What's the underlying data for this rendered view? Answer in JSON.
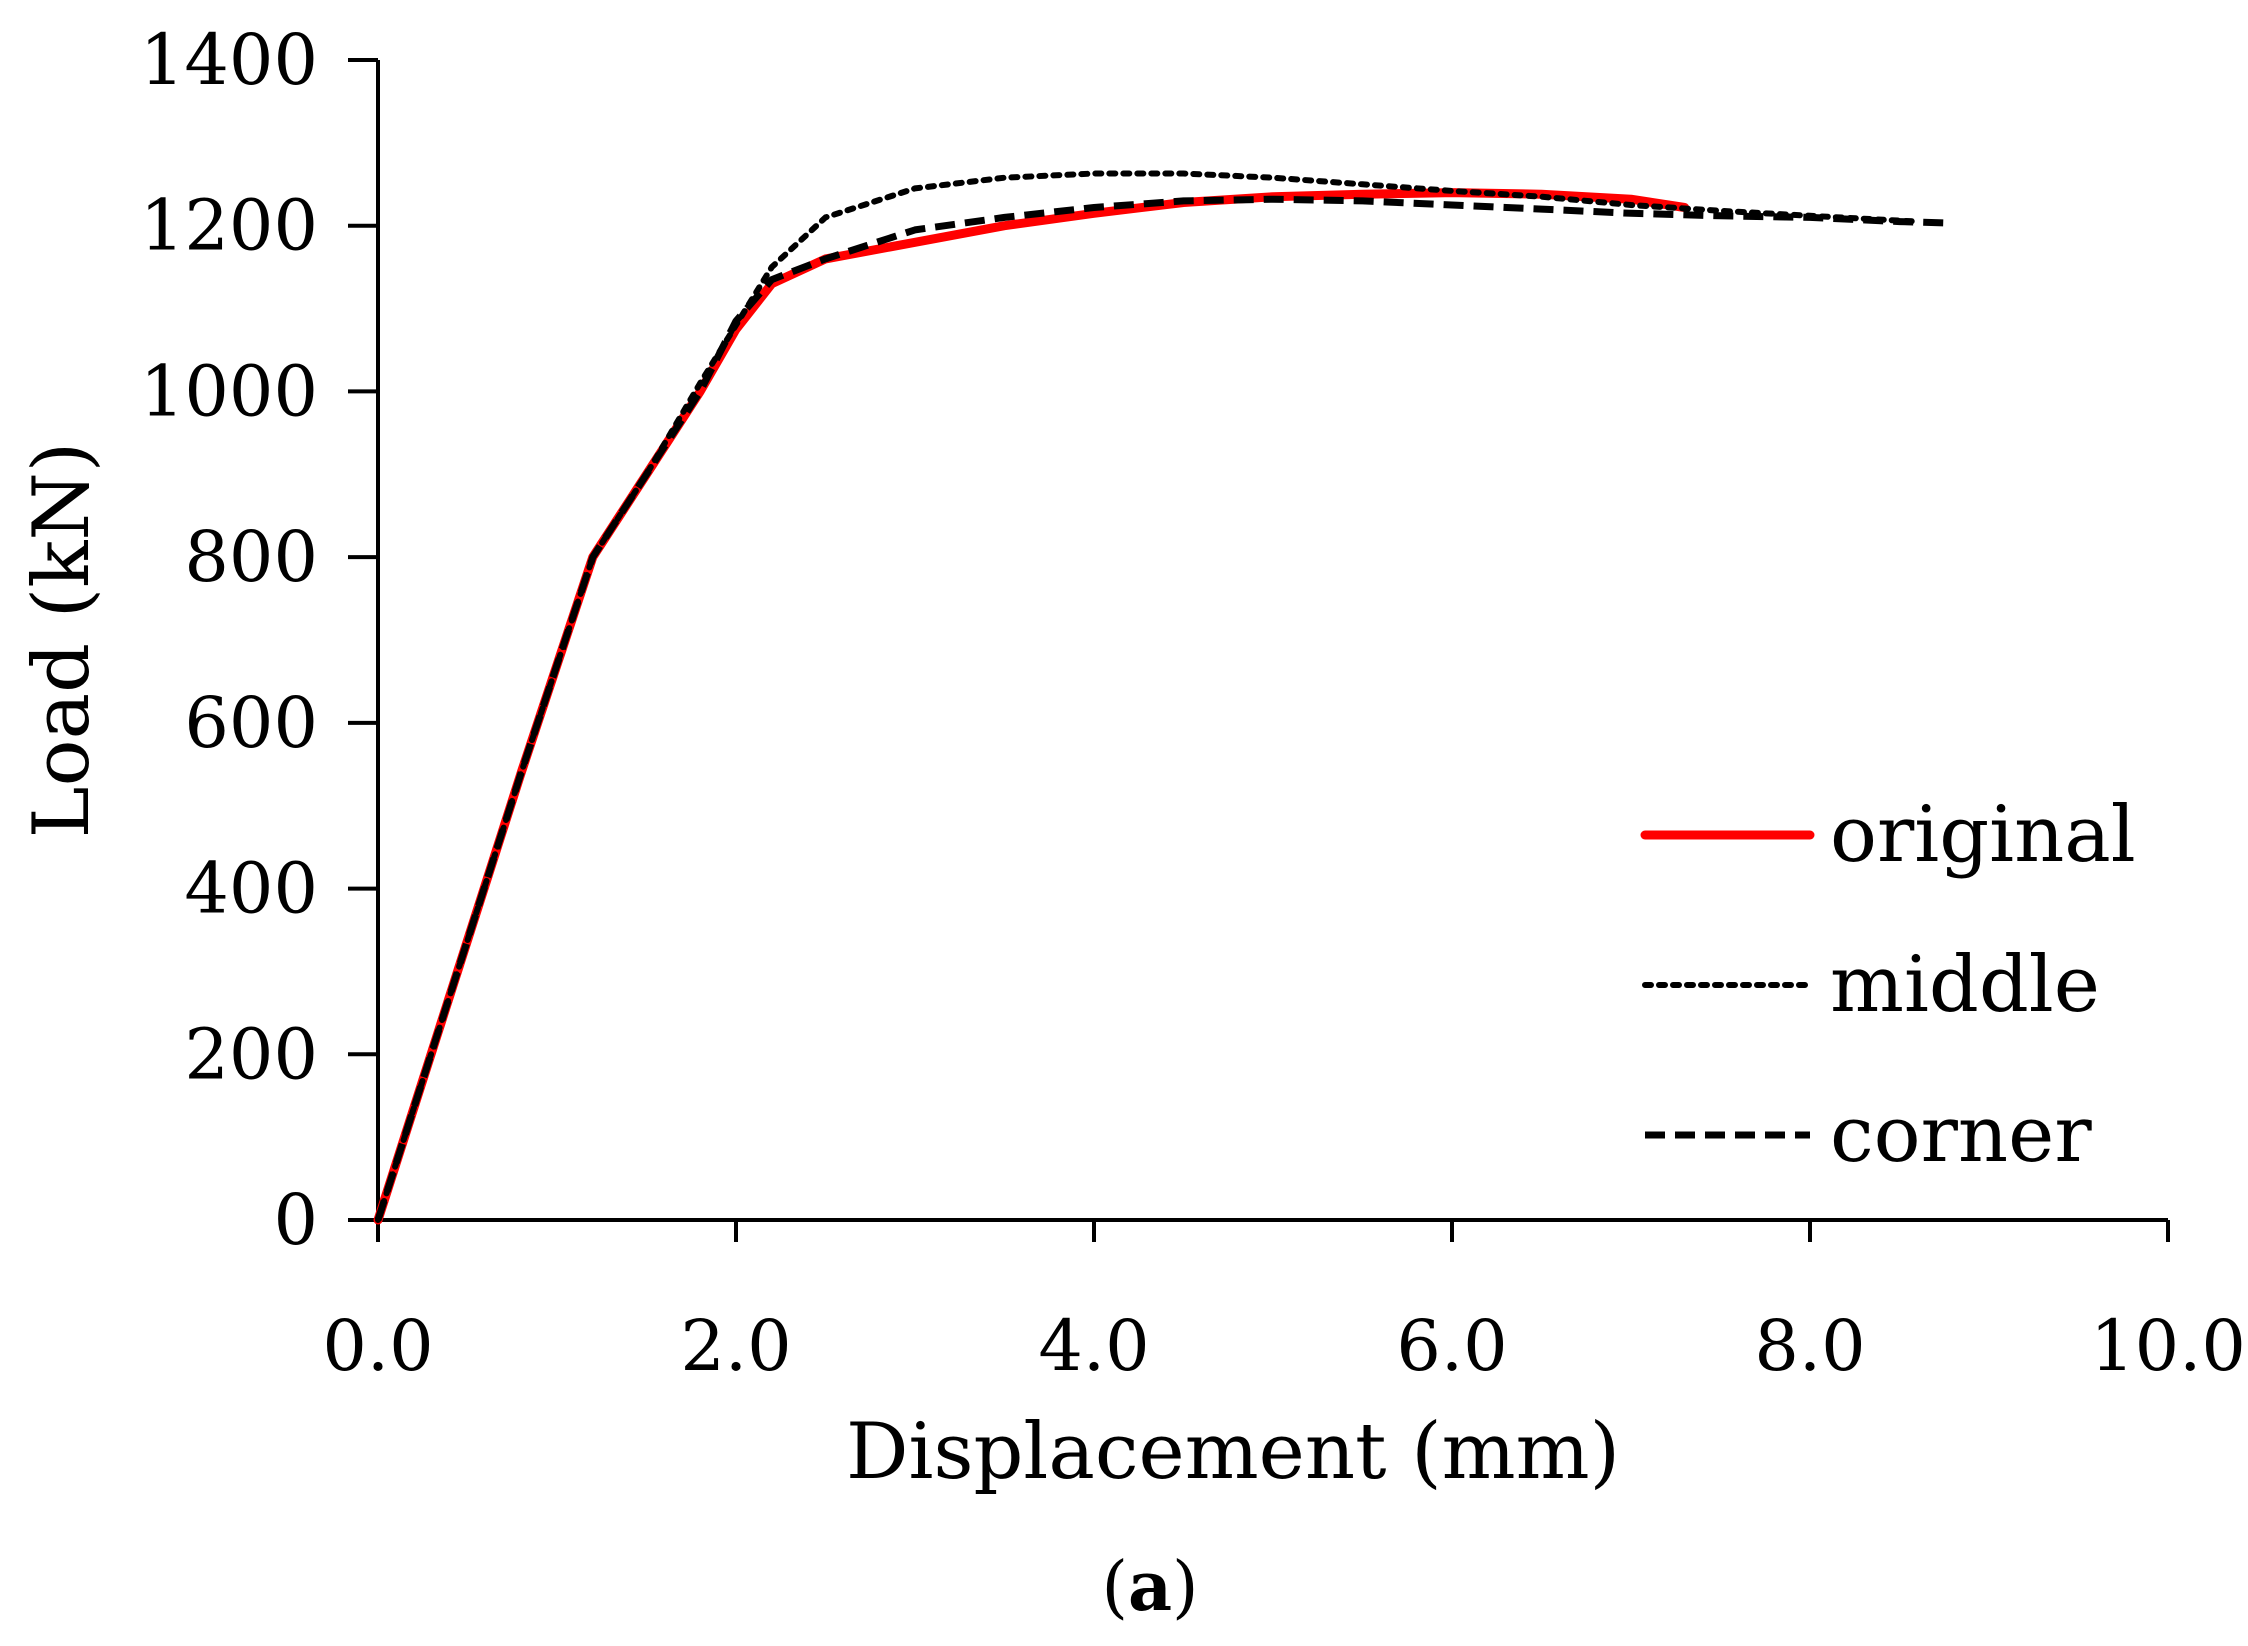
{
  "chart_data": {
    "type": "line",
    "xlabel": "Displacement (mm)",
    "ylabel": "Load (kN)",
    "xlim": [
      0,
      10
    ],
    "ylim": [
      0,
      1400
    ],
    "xticks": [
      0,
      2,
      4,
      6,
      8,
      10
    ],
    "xtick_labels": [
      "0.0",
      "2.0",
      "4.0",
      "6.0",
      "8.0",
      "10.0"
    ],
    "yticks": [
      0,
      200,
      400,
      600,
      800,
      1000,
      1200,
      1400
    ],
    "ytick_labels": [
      "0",
      "200",
      "400",
      "600",
      "800",
      "1000",
      "1200",
      "1400"
    ],
    "grid": false,
    "legend_position": "lower-right",
    "caption": {
      "open": "(",
      "label": "a",
      "close": ")"
    },
    "series": [
      {
        "name": "original",
        "color": "#ff0000",
        "style": "solid",
        "x": [
          0,
          0.4,
          0.8,
          1.2,
          1.5,
          1.8,
          2.0,
          2.2,
          2.5,
          3.0,
          3.5,
          4.0,
          4.5,
          5.0,
          5.5,
          6.0,
          6.5,
          7.0,
          7.3
        ],
        "y": [
          0,
          270,
          540,
          800,
          900,
          1000,
          1075,
          1130,
          1160,
          1180,
          1200,
          1215,
          1228,
          1235,
          1238,
          1240,
          1238,
          1232,
          1222
        ]
      },
      {
        "name": "middle",
        "color": "#000000",
        "style": "dotted",
        "x": [
          0,
          0.4,
          0.8,
          1.2,
          1.5,
          1.8,
          2.0,
          2.2,
          2.5,
          3.0,
          3.5,
          4.0,
          4.5,
          5.0,
          5.5,
          6.0,
          6.5,
          7.0,
          7.5,
          8.0,
          8.6
        ],
        "y": [
          0,
          270,
          540,
          800,
          900,
          1010,
          1080,
          1150,
          1210,
          1245,
          1258,
          1263,
          1263,
          1258,
          1250,
          1242,
          1235,
          1225,
          1218,
          1212,
          1205
        ]
      },
      {
        "name": "corner",
        "color": "#000000",
        "style": "dashed",
        "x": [
          0,
          0.4,
          0.8,
          1.2,
          1.5,
          1.8,
          2.0,
          2.2,
          2.5,
          3.0,
          3.5,
          4.0,
          4.5,
          5.0,
          5.5,
          6.0,
          6.5,
          7.0,
          7.5,
          8.0,
          8.5,
          8.8
        ],
        "y": [
          0,
          270,
          540,
          800,
          900,
          1000,
          1085,
          1135,
          1160,
          1195,
          1210,
          1222,
          1230,
          1232,
          1230,
          1225,
          1220,
          1215,
          1212,
          1210,
          1205,
          1203
        ]
      }
    ]
  }
}
